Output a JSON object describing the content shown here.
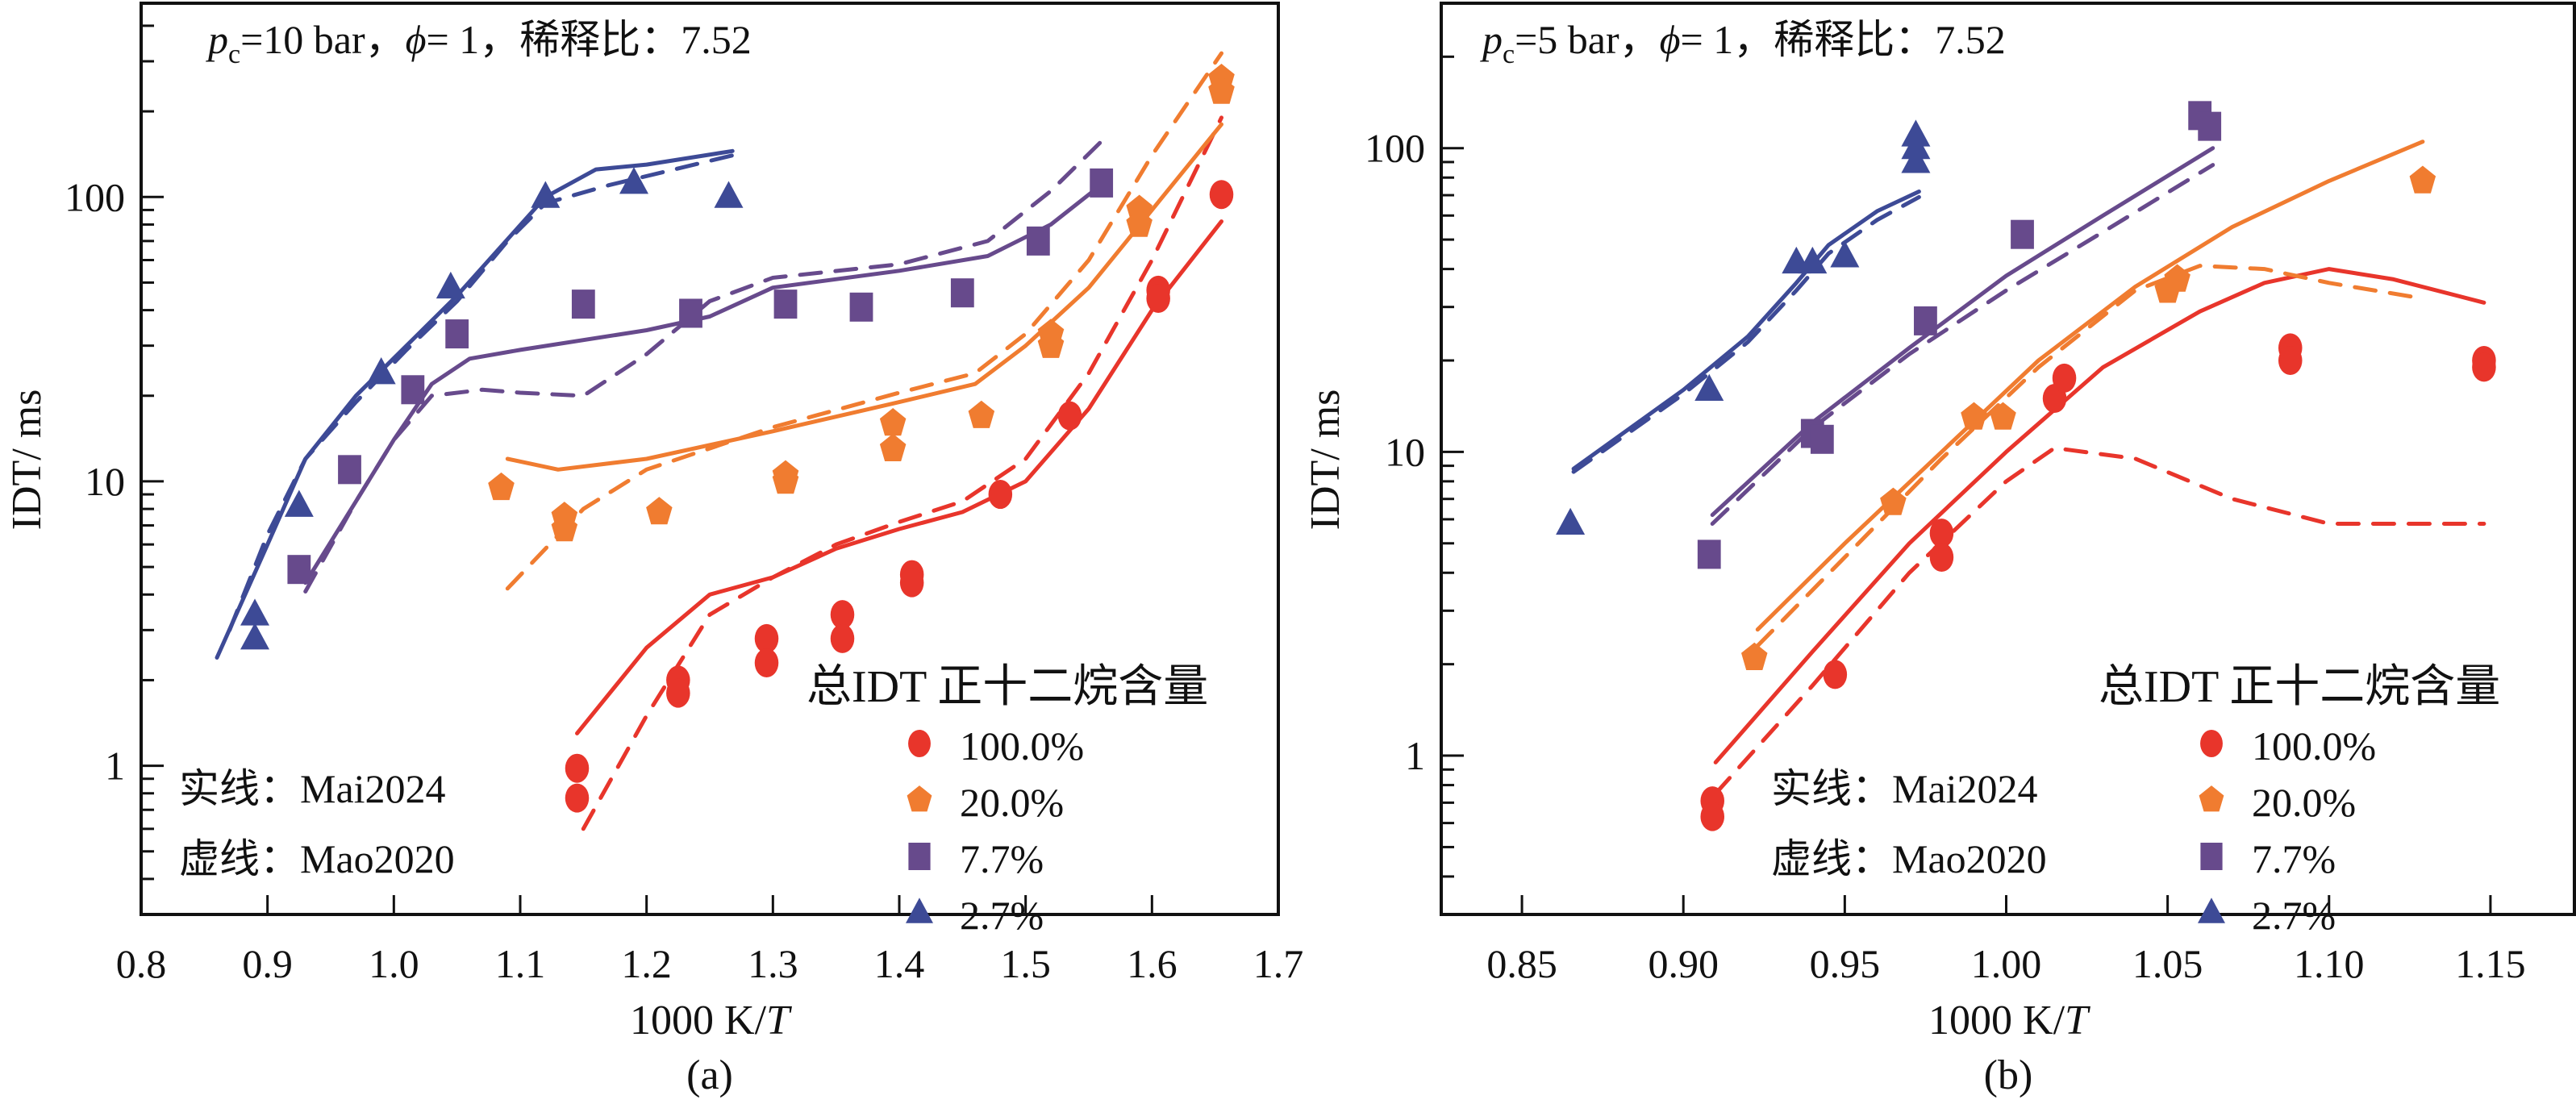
{
  "chart_data": [
    {
      "panel": "(a)",
      "type": "scatter",
      "title": "p_c=10 bar, φ= 1, 稀释比: 7.52",
      "title_parts": {
        "p": "p",
        "sub": "c",
        "rest1": "=10 bar，",
        "phi": "ϕ",
        "rest2": "= 1，稀释比：7.52"
      },
      "xlabel": "1000 K/T",
      "xlabel_parts": {
        "pre": "1000 K/",
        "italic": "T"
      },
      "ylabel": "IDT/ ms",
      "caption": "(a)",
      "xlim": [
        0.8,
        1.7
      ],
      "ylim": [
        0.3,
        480
      ],
      "yscale": "log",
      "xticks": [
        0.8,
        0.9,
        1.0,
        1.1,
        1.2,
        1.3,
        1.4,
        1.5,
        1.6,
        1.7
      ],
      "xtick_labels": [
        "0.8",
        "0.9",
        "1.0",
        "1.1",
        "1.2",
        "1.3",
        "1.4",
        "1.5",
        "1.6",
        "1.7"
      ],
      "yticks": [
        1,
        10,
        100
      ],
      "ytick_labels": [
        "1",
        "10",
        "100"
      ],
      "legend_title": "总IDT 正十二烷含量",
      "legend_position": "bottom-right",
      "annotations": [
        "实线：Mai2024",
        "虚线：Mao2020"
      ],
      "series": [
        {
          "name": "100.0%",
          "marker": "circle",
          "color": "#e8352b",
          "points": [
            [
              1.145,
              0.98
            ],
            [
              1.145,
              0.77
            ],
            [
              1.225,
              2.0
            ],
            [
              1.225,
              1.8
            ],
            [
              1.295,
              2.8
            ],
            [
              1.295,
              2.3
            ],
            [
              1.355,
              3.4
            ],
            [
              1.355,
              2.8
            ],
            [
              1.41,
              4.7
            ],
            [
              1.41,
              4.4
            ],
            [
              1.48,
              9.0
            ],
            [
              1.535,
              17
            ],
            [
              1.605,
              47
            ],
            [
              1.605,
              44
            ],
            [
              1.655,
              102
            ]
          ],
          "solid": [
            [
              1.145,
              1.3
            ],
            [
              1.2,
              2.6
            ],
            [
              1.25,
              4.0
            ],
            [
              1.3,
              4.6
            ],
            [
              1.35,
              5.8
            ],
            [
              1.4,
              6.8
            ],
            [
              1.45,
              7.8
            ],
            [
              1.5,
              10
            ],
            [
              1.55,
              18
            ],
            [
              1.6,
              40
            ],
            [
              1.655,
              82
            ]
          ],
          "dashed": [
            [
              1.15,
              0.6
            ],
            [
              1.2,
              1.5
            ],
            [
              1.25,
              3.4
            ],
            [
              1.3,
              4.6
            ],
            [
              1.35,
              6.0
            ],
            [
              1.4,
              7.2
            ],
            [
              1.45,
              8.5
            ],
            [
              1.5,
              12
            ],
            [
              1.55,
              24
            ],
            [
              1.6,
              60
            ],
            [
              1.655,
              190
            ]
          ]
        },
        {
          "name": "20.0%",
          "marker": "pentagon",
          "color": "#f07c30",
          "points": [
            [
              1.085,
              9.5
            ],
            [
              1.135,
              7.5
            ],
            [
              1.135,
              6.8
            ],
            [
              1.21,
              7.8
            ],
            [
              1.31,
              10.5
            ],
            [
              1.31,
              10.0
            ],
            [
              1.395,
              16
            ],
            [
              1.395,
              13
            ],
            [
              1.465,
              17
            ],
            [
              1.52,
              33
            ],
            [
              1.52,
              30
            ],
            [
              1.59,
              90
            ],
            [
              1.59,
              80
            ],
            [
              1.655,
              260
            ],
            [
              1.655,
              235
            ]
          ],
          "solid": [
            [
              1.09,
              12
            ],
            [
              1.13,
              11
            ],
            [
              1.2,
              12
            ],
            [
              1.3,
              15
            ],
            [
              1.4,
              19
            ],
            [
              1.46,
              22
            ],
            [
              1.5,
              30
            ],
            [
              1.55,
              48
            ],
            [
              1.6,
              90
            ],
            [
              1.655,
              180
            ]
          ],
          "dashed": [
            [
              1.09,
              4.2
            ],
            [
              1.15,
              8
            ],
            [
              1.2,
              11
            ],
            [
              1.3,
              15.5
            ],
            [
              1.4,
              20.5
            ],
            [
              1.46,
              24
            ],
            [
              1.5,
              33
            ],
            [
              1.55,
              60
            ],
            [
              1.6,
              140
            ],
            [
              1.655,
              320
            ]
          ]
        },
        {
          "name": "7.7%",
          "marker": "square",
          "color": "#674a8c",
          "points": [
            [
              0.925,
              4.9
            ],
            [
              0.965,
              11
            ],
            [
              1.015,
              21
            ],
            [
              1.05,
              33
            ],
            [
              1.15,
              42
            ],
            [
              1.235,
              39
            ],
            [
              1.31,
              42
            ],
            [
              1.37,
              41
            ],
            [
              1.45,
              46
            ],
            [
              1.51,
              70
            ],
            [
              1.56,
              112
            ]
          ],
          "solid": [
            [
              0.93,
              4.4
            ],
            [
              0.97,
              8.5
            ],
            [
              1.0,
              14
            ],
            [
              1.03,
              22
            ],
            [
              1.06,
              27
            ],
            [
              1.1,
              29
            ],
            [
              1.2,
              34
            ],
            [
              1.25,
              38
            ],
            [
              1.3,
              48
            ],
            [
              1.4,
              55
            ],
            [
              1.47,
              62
            ],
            [
              1.52,
              80
            ],
            [
              1.565,
              115
            ]
          ],
          "dashed": [
            [
              0.93,
              4.1
            ],
            [
              0.97,
              8.5
            ],
            [
              1.0,
              14
            ],
            [
              1.03,
              20
            ],
            [
              1.07,
              21
            ],
            [
              1.1,
              20.5
            ],
            [
              1.15,
              20
            ],
            [
              1.2,
              28
            ],
            [
              1.25,
              43
            ],
            [
              1.3,
              52
            ],
            [
              1.4,
              58
            ],
            [
              1.47,
              70
            ],
            [
              1.52,
              105
            ],
            [
              1.565,
              165
            ]
          ]
        },
        {
          "name": "2.7%",
          "marker": "triangle",
          "color": "#3d4a96",
          "points": [
            [
              0.89,
              3.4
            ],
            [
              0.89,
              2.8
            ],
            [
              0.925,
              8.2
            ],
            [
              0.99,
              24
            ],
            [
              1.045,
              48
            ],
            [
              1.12,
              100
            ],
            [
              1.19,
              112
            ],
            [
              1.265,
              100
            ]
          ],
          "solid": [
            [
              0.86,
              2.4
            ],
            [
              0.9,
              6
            ],
            [
              0.93,
              12
            ],
            [
              0.97,
              20
            ],
            [
              1.01,
              30
            ],
            [
              1.05,
              45
            ],
            [
              1.12,
              100
            ],
            [
              1.16,
              125
            ],
            [
              1.2,
              130
            ],
            [
              1.268,
              145
            ]
          ],
          "dashed": [
            [
              0.87,
              3
            ],
            [
              0.9,
              6.5
            ],
            [
              0.93,
              12
            ],
            [
              0.97,
              19
            ],
            [
              1.01,
              29
            ],
            [
              1.05,
              43
            ],
            [
              1.09,
              70
            ],
            [
              1.12,
              95
            ],
            [
              1.17,
              110
            ],
            [
              1.268,
              140
            ]
          ]
        }
      ]
    },
    {
      "panel": "(b)",
      "type": "scatter",
      "title": "p_c=5 bar, φ= 1, 稀释比: 7.52",
      "title_parts": {
        "p": "p",
        "sub": "c",
        "rest1": "=5 bar，",
        "phi": "ϕ",
        "rest2": "= 1，稀释比：7.52"
      },
      "xlabel": "1000 K/T",
      "xlabel_parts": {
        "pre": "1000 K/",
        "italic": "T"
      },
      "ylabel": "IDT/ ms",
      "caption": "(b)",
      "xlim": [
        0.825,
        1.176
      ],
      "ylim": [
        0.3,
        300
      ],
      "yscale": "log",
      "xticks": [
        0.85,
        0.9,
        0.95,
        1.0,
        1.05,
        1.1,
        1.15
      ],
      "xtick_labels": [
        "0.85",
        "0.90",
        "0.95",
        "1.00",
        "1.05",
        "1.10",
        "1.15"
      ],
      "yticks": [
        1,
        10,
        100
      ],
      "ytick_labels": [
        "1",
        "10",
        "100"
      ],
      "legend_title": "总IDT 正十二烷含量",
      "legend_position": "bottom-right",
      "annotations": [
        "实线：Mai2024",
        "虚线：Mao2020"
      ],
      "series": [
        {
          "name": "100.0%",
          "marker": "circle",
          "color": "#e8352b",
          "points": [
            [
              0.909,
              0.71
            ],
            [
              0.909,
              0.63
            ],
            [
              0.947,
              1.85
            ],
            [
              0.98,
              5.4
            ],
            [
              0.98,
              4.5
            ],
            [
              1.015,
              15
            ],
            [
              1.018,
              17.5
            ],
            [
              1.088,
              22
            ],
            [
              1.088,
              20
            ],
            [
              1.148,
              20
            ],
            [
              1.148,
              19
            ]
          ],
          "solid": [
            [
              0.91,
              0.95
            ],
            [
              0.94,
              2.2
            ],
            [
              0.97,
              5
            ],
            [
              1.0,
              10
            ],
            [
              1.03,
              19
            ],
            [
              1.06,
              29
            ],
            [
              1.08,
              36
            ],
            [
              1.1,
              40
            ],
            [
              1.12,
              37
            ],
            [
              1.148,
              31
            ]
          ],
          "dashed": [
            [
              0.91,
              0.75
            ],
            [
              0.94,
              1.7
            ],
            [
              0.97,
              4
            ],
            [
              1.0,
              8
            ],
            [
              1.015,
              10.3
            ],
            [
              1.04,
              9.5
            ],
            [
              1.07,
              7
            ],
            [
              1.1,
              5.8
            ],
            [
              1.148,
              5.8
            ]
          ]
        },
        {
          "name": "20.0%",
          "marker": "pentagon",
          "color": "#f07c30",
          "points": [
            [
              0.922,
              2.1
            ],
            [
              0.965,
              6.8
            ],
            [
              0.99,
              13
            ],
            [
              0.999,
              13
            ],
            [
              1.05,
              34
            ],
            [
              1.053,
              37
            ],
            [
              1.129,
              78
            ]
          ],
          "solid": [
            [
              0.923,
              2.6
            ],
            [
              0.95,
              5
            ],
            [
              0.98,
              10
            ],
            [
              1.01,
              20
            ],
            [
              1.04,
              35
            ],
            [
              1.07,
              55
            ],
            [
              1.1,
              78
            ],
            [
              1.129,
              105
            ]
          ],
          "dashed": [
            [
              0.923,
              2.3
            ],
            [
              0.95,
              4.5
            ],
            [
              0.98,
              9.5
            ],
            [
              1.01,
              19
            ],
            [
              1.04,
              34
            ],
            [
              1.06,
              41
            ],
            [
              1.08,
              40
            ],
            [
              1.1,
              36
            ],
            [
              1.129,
              32
            ]
          ]
        },
        {
          "name": "7.7%",
          "marker": "square",
          "color": "#674a8c",
          "points": [
            [
              0.908,
              4.6
            ],
            [
              0.94,
              11.5
            ],
            [
              0.943,
              11
            ],
            [
              0.975,
              27
            ],
            [
              1.005,
              52
            ],
            [
              1.06,
              128
            ],
            [
              1.063,
              118
            ]
          ],
          "solid": [
            [
              0.909,
              6.2
            ],
            [
              0.94,
              12.5
            ],
            [
              0.97,
              22
            ],
            [
              1.0,
              38
            ],
            [
              1.03,
              60
            ],
            [
              1.064,
              100
            ]
          ],
          "dashed": [
            [
              0.909,
              5.8
            ],
            [
              0.94,
              12
            ],
            [
              0.97,
              21
            ],
            [
              1.0,
              34
            ],
            [
              1.03,
              53
            ],
            [
              1.064,
              88
            ]
          ]
        },
        {
          "name": "2.7%",
          "marker": "triangle",
          "color": "#3d4a96",
          "points": [
            [
              0.865,
              5.8
            ],
            [
              0.908,
              16
            ],
            [
              0.935,
              42
            ],
            [
              0.94,
              42
            ],
            [
              0.95,
              44
            ],
            [
              0.972,
              110
            ],
            [
              0.972,
              100
            ],
            [
              0.972,
              90
            ]
          ],
          "solid": [
            [
              0.866,
              8.8
            ],
            [
              0.9,
              16
            ],
            [
              0.92,
              24
            ],
            [
              0.935,
              36
            ],
            [
              0.945,
              48
            ],
            [
              0.96,
              62
            ],
            [
              0.973,
              72
            ]
          ],
          "dashed": [
            [
              0.866,
              8.6
            ],
            [
              0.9,
              15.5
            ],
            [
              0.92,
              23
            ],
            [
              0.935,
              34
            ],
            [
              0.945,
              45
            ],
            [
              0.96,
              58
            ],
            [
              0.973,
              69
            ]
          ]
        }
      ]
    }
  ]
}
